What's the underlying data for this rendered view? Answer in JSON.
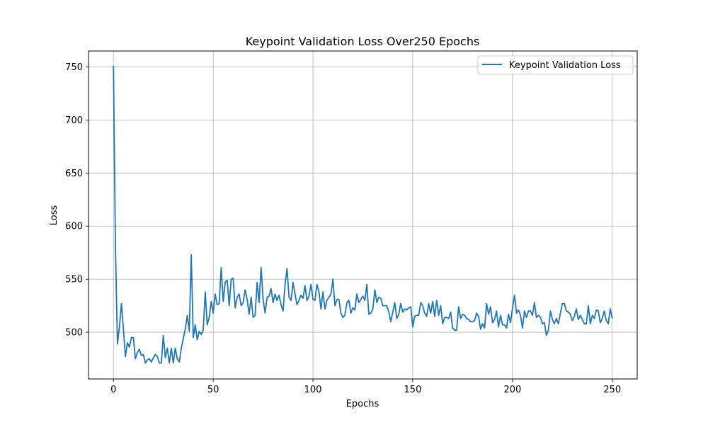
{
  "chart_data": {
    "type": "line",
    "title": "Keypoint Validation Loss Over250 Epochs",
    "xlabel": "Epochs",
    "ylabel": "Loss",
    "xlim": [
      -12.5,
      262.5
    ],
    "ylim": [
      456,
      765
    ],
    "xticks": [
      0,
      50,
      100,
      150,
      200,
      250
    ],
    "yticks": [
      500,
      550,
      600,
      650,
      700,
      750
    ],
    "grid": true,
    "legend_position": "top-right",
    "series": [
      {
        "name": "Keypoint Validation Loss",
        "color": "#1f77b4",
        "values": [
          751,
          580,
          489,
          505,
          527,
          503,
          477,
          490,
          486,
          495,
          495,
          475,
          481,
          484,
          478,
          479,
          471,
          474,
          475,
          472,
          476,
          479,
          477,
          471,
          471,
          497,
          476,
          485,
          471,
          485,
          471,
          485,
          475,
          472,
          485,
          494,
          503,
          516,
          501,
          573,
          495,
          507,
          493,
          501,
          498,
          502,
          538,
          507,
          514,
          529,
          518,
          536,
          526,
          527,
          561,
          529,
          547,
          549,
          525,
          550,
          551,
          523,
          533,
          536,
          525,
          528,
          540,
          531,
          517,
          533,
          514,
          516,
          547,
          528,
          561,
          531,
          518,
          533,
          534,
          541,
          528,
          536,
          530,
          535,
          526,
          520,
          545,
          560,
          533,
          530,
          547,
          536,
          526,
          530,
          535,
          532,
          544,
          530,
          534,
          545,
          531,
          530,
          545,
          538,
          522,
          538,
          522,
          530,
          533,
          536,
          550,
          525,
          531,
          531,
          518,
          514,
          516,
          528,
          530,
          518,
          523,
          521,
          536,
          528,
          531,
          534,
          530,
          545,
          517,
          518,
          522,
          540,
          528,
          533,
          532,
          525,
          525,
          525,
          519,
          510,
          519,
          528,
          513,
          517,
          527,
          519,
          522,
          521,
          523,
          524,
          505,
          515,
          516,
          516,
          528,
          525,
          518,
          515,
          527,
          518,
          529,
          515,
          530,
          516,
          525,
          508,
          514,
          514,
          513,
          519,
          504,
          502,
          502,
          524,
          513,
          517,
          516,
          513,
          512,
          510,
          510,
          511,
          518,
          515,
          503,
          508,
          504,
          527,
          517,
          524,
          509,
          512,
          520,
          505,
          516,
          507,
          507,
          504,
          517,
          509,
          523,
          535,
          518,
          521,
          516,
          504,
          520,
          514,
          520,
          520,
          516,
          528,
          514,
          516,
          514,
          508,
          509,
          497,
          502,
          520,
          512,
          508,
          513,
          508,
          518,
          527,
          527,
          520,
          519,
          517,
          511,
          515,
          522,
          512,
          516,
          512,
          508,
          508,
          525,
          508,
          516,
          513,
          521,
          520,
          509,
          513,
          520,
          511,
          508,
          522,
          513
        ]
      }
    ]
  }
}
